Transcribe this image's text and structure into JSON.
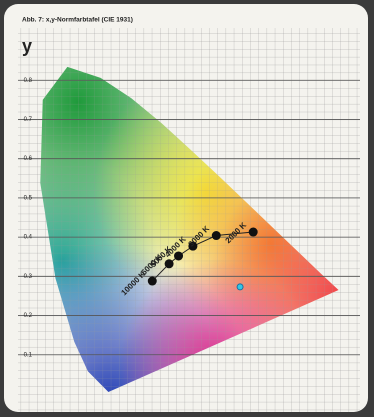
{
  "chart_data": {
    "type": "scatter",
    "title": "Abb. 7: x,y-Normfarbtafel (CIE 1931)",
    "y_label": "y",
    "xlim": [
      0,
      0.78
    ],
    "ylim": [
      0,
      0.9
    ],
    "yticks": [
      0.1,
      0.2,
      0.3,
      0.4,
      0.5,
      0.6,
      0.7,
      0.8
    ],
    "grid": true,
    "series": [
      {
        "color": "#111111",
        "x": [
          0.281,
          0.322,
          0.345,
          0.38,
          0.437,
          0.527
        ],
        "values": [
          0.288,
          0.332,
          0.352,
          0.377,
          0.404,
          0.413
        ],
        "labels": [
          "10000 K",
          "6000 K",
          "5000 K",
          "4000 K",
          "3000 K",
          "2000 K"
        ]
      },
      {
        "color": "#33c6e6",
        "x": [
          0.495
        ],
        "values": [
          0.273
        ]
      }
    ]
  }
}
